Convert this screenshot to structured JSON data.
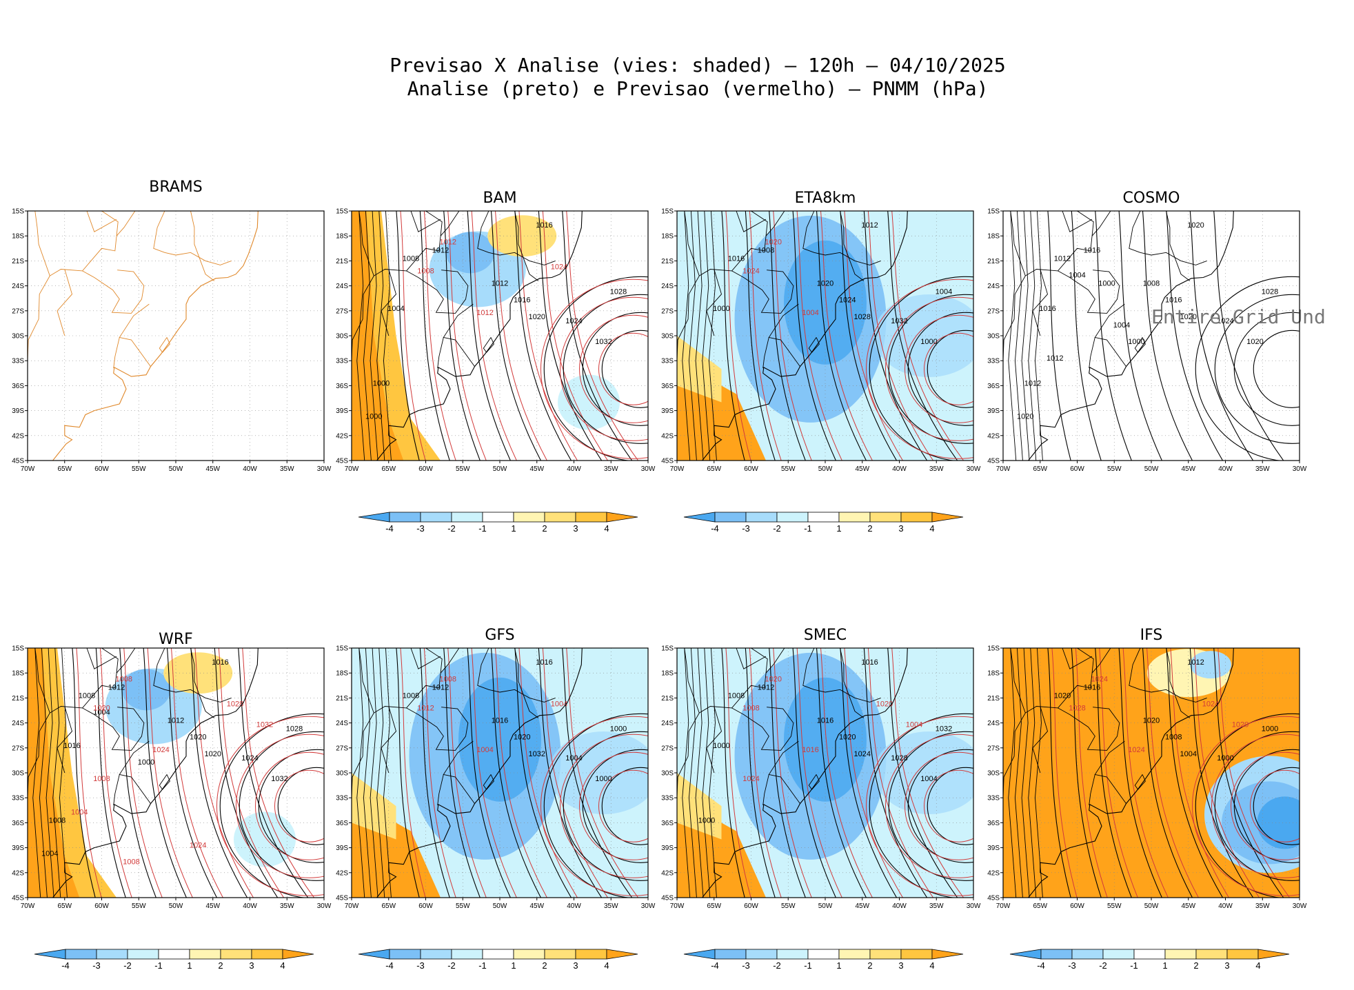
{
  "figure": {
    "title_line1": "Previsao X Analise (vies: shaded) — 120h — 04/10/2025",
    "title_line2": "Analise (preto) e Previsao (vermelho) — PNMM (hPa)"
  },
  "colors": {
    "analysis_contour": "#000000",
    "forecast_contour": "#d23a3a",
    "coastline": "#e0882a",
    "bias_scale": [
      "#4aa8f0",
      "#7cc0f6",
      "#a7dcfb",
      "#cdf3fc",
      "#ffffff",
      "#fff5b3",
      "#ffe17a",
      "#ffc640",
      "#ffa31a"
    ]
  },
  "axes": {
    "lat_labels": [
      "15S",
      "18S",
      "21S",
      "24S",
      "27S",
      "30S",
      "33S",
      "36S",
      "39S",
      "42S",
      "45S"
    ],
    "lon_labels": [
      "70W",
      "65W",
      "60W",
      "55W",
      "50W",
      "45W",
      "40W",
      "35W",
      "30W"
    ]
  },
  "colorbar_labels": [
    "-4",
    "-3",
    "-2",
    "-1",
    "1",
    "2",
    "3",
    "4"
  ],
  "panels": [
    {
      "name": "BRAMS",
      "bias": "none",
      "colorbar": false,
      "analysis_labels": [],
      "forecast_labels": [],
      "overlay": ""
    },
    {
      "name": "BAM",
      "bias": "mixed",
      "colorbar": true,
      "analysis_labels": [
        "1016",
        "1012",
        "1008",
        "1012",
        "1016",
        "1020",
        "1024",
        "1028",
        "1032",
        "1004",
        "1000",
        "1000"
      ],
      "forecast_labels": [
        "1012",
        "1008",
        "1012",
        "1024"
      ],
      "overlay": ""
    },
    {
      "name": "ETA8km",
      "bias": "negative",
      "colorbar": true,
      "analysis_labels": [
        "1012",
        "1008",
        "1016",
        "1020",
        "1024",
        "1028",
        "1032",
        "1004",
        "1000",
        "1000"
      ],
      "forecast_labels": [
        "1020",
        "1024",
        "1004"
      ],
      "overlay": ""
    },
    {
      "name": "COSMO",
      "bias": "none",
      "colorbar": false,
      "analysis_labels": [
        "1020",
        "1016",
        "1012",
        "1008",
        "1016",
        "1020",
        "1024",
        "1028",
        "1020",
        "1016",
        "1012",
        "1020",
        "1004",
        "1004",
        "1000",
        "1000",
        "1012"
      ],
      "forecast_labels": [],
      "overlay": "Entire Grid Und"
    },
    {
      "name": "WRF",
      "bias": "mixed",
      "colorbar": true,
      "analysis_labels": [
        "1016",
        "1012",
        "1008",
        "1012",
        "1020",
        "1020",
        "1024",
        "1028",
        "1032",
        "1016",
        "1008",
        "1004",
        "1004",
        "1000"
      ],
      "forecast_labels": [
        "1008",
        "1020",
        "1024",
        "1028",
        "1032",
        "1008",
        "1004",
        "1024",
        "1008"
      ],
      "overlay": ""
    },
    {
      "name": "GFS",
      "bias": "negative",
      "colorbar": true,
      "analysis_labels": [
        "1016",
        "1012",
        "1008",
        "1016",
        "1020",
        "1032",
        "1004",
        "1000",
        "1000"
      ],
      "forecast_labels": [
        "1008",
        "1012",
        "1004",
        "1004"
      ],
      "overlay": ""
    },
    {
      "name": "SMEC",
      "bias": "negative",
      "colorbar": true,
      "analysis_labels": [
        "1016",
        "1012",
        "1008",
        "1016",
        "1020",
        "1024",
        "1028",
        "1032",
        "1004",
        "1000",
        "1000"
      ],
      "forecast_labels": [
        "1020",
        "1008",
        "1016",
        "1020",
        "1004",
        "1024"
      ],
      "overlay": ""
    },
    {
      "name": "IFS",
      "bias": "positive",
      "colorbar": true,
      "analysis_labels": [
        "1012",
        "1016",
        "1020",
        "1020",
        "1008",
        "1004",
        "1000",
        "1000"
      ],
      "forecast_labels": [
        "1024",
        "1028",
        "1024",
        "1024",
        "1020"
      ],
      "overlay": ""
    }
  ]
}
